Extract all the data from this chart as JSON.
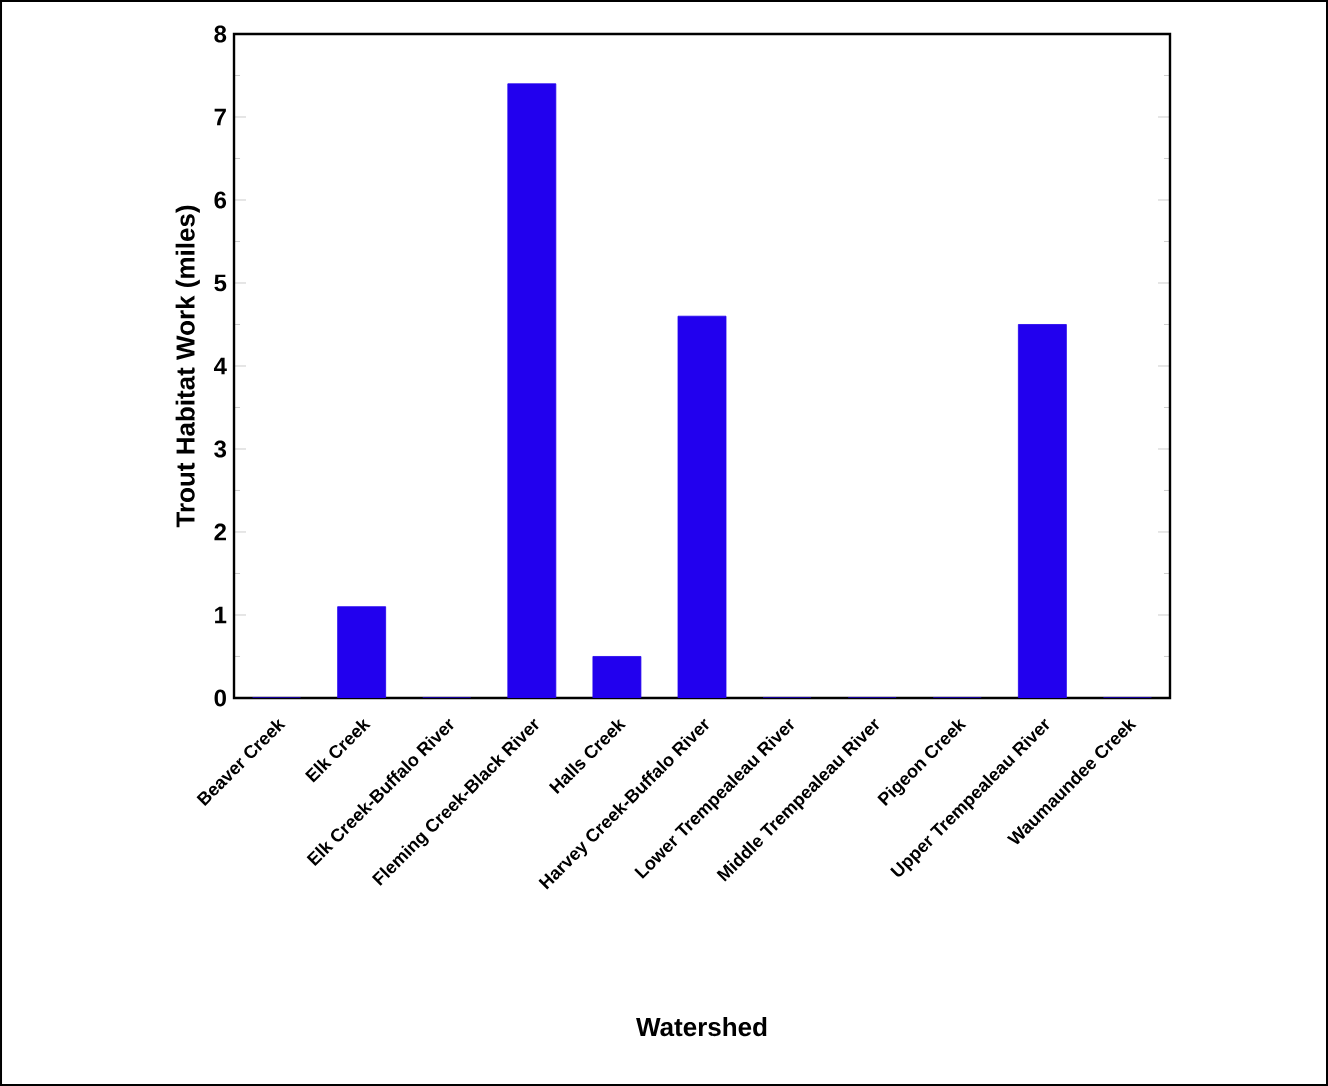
{
  "chart_data": {
    "type": "bar",
    "xlabel": "Watershed",
    "ylabel": "Trout Habitat Work (miles)",
    "categories": [
      "Beaver Creek",
      "Elk Creek",
      "Elk Creek-Buffalo River",
      "Fleming Creek-Black River",
      "Halls Creek",
      "Harvey Creek-Buffalo River",
      "Lower Trempealeau River",
      "Middle Trempealeau River",
      "Pigeon Creek",
      "Upper Trempealeau River",
      "Waumaundee Creek"
    ],
    "values": [
      0,
      1.1,
      0,
      7.4,
      0.5,
      4.6,
      0,
      0,
      0,
      4.5,
      0
    ],
    "color": "#2200ee",
    "ylim": [
      0,
      8
    ],
    "yticks": [
      0,
      1,
      2,
      3,
      4,
      5,
      6,
      7,
      8
    ]
  }
}
